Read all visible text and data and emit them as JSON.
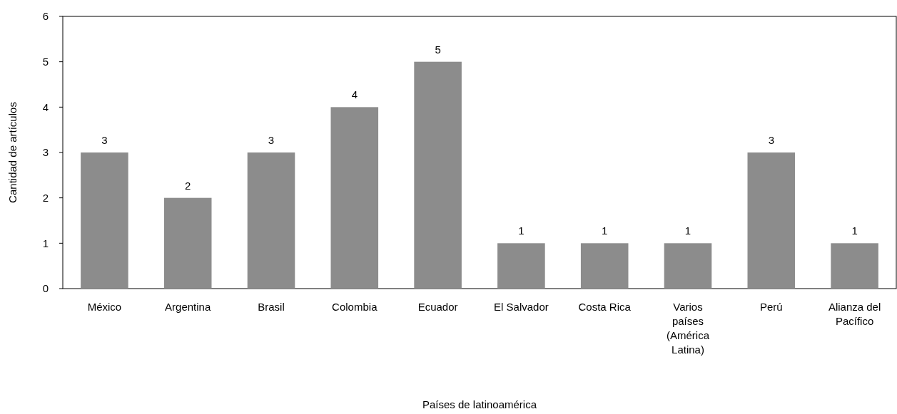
{
  "chart_data": {
    "type": "bar",
    "xlabel": "Países de latinoamérica",
    "ylabel": "Cantidad de artículos",
    "categories": [
      "México",
      "Argentina",
      "Brasil",
      "Colombia",
      "Ecuador",
      "El Salvador",
      "Costa Rica",
      "Varios países (América Latina)",
      "Perú",
      "Alianza del Pacífico"
    ],
    "values": [
      3,
      2,
      3,
      4,
      5,
      1,
      1,
      1,
      3,
      1
    ],
    "color": "#8c8c8c",
    "ylim": [
      0,
      6
    ],
    "yticks": [
      0,
      1,
      2,
      3,
      4,
      5,
      6
    ],
    "grid": false,
    "data_labels": true
  }
}
